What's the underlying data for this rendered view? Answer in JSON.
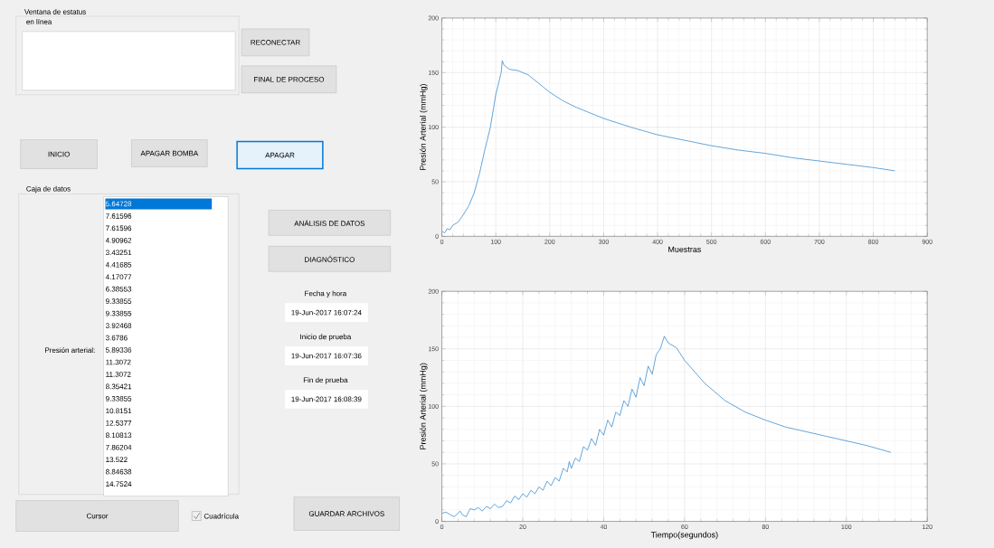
{
  "chart_data": [
    {
      "type": "other",
      "annotations": [
        "Ventana de estatus",
        "en línea",
        "RECONECTAR",
        "FINAL DE PROCESO",
        "INICIO",
        "APAGAR BOMBA",
        "APAGAR",
        "Caja de datos",
        "Presión arterial:",
        "5.64728",
        "7.61596",
        "7.61596",
        "4.90962",
        "3.43251",
        "4.41685",
        "4.17077",
        "6.38553",
        "9.33855",
        "9.33855",
        "3.92468",
        "3.6786",
        "5.89336",
        "11.3072",
        "11.3072",
        "8.35421",
        "9.33855",
        "10.8151",
        "12.5377",
        "8.10813",
        "7.86204",
        "13.522",
        "8.84638",
        "14.7524",
        "ANÁLISIS DE DATOS",
        "DIAGNÓSTICO",
        "Fecha y hora",
        "19-Jun-2017 16:07:24",
        "Inicio de prueba",
        "19-Jun-2017 16:07:36",
        "Fin de prueba",
        "19-Jun-2017 16:08:39",
        "Cursor",
        "Cuadrícula",
        "GUARDAR ARCHIVOS"
      ]
    },
    {
      "type": "line",
      "xlabel": "Muestras",
      "ylabel": "Presión Arterial (mmHg)",
      "xlim": [
        0,
        900
      ],
      "ylim": [
        0,
        200
      ],
      "xticks": [
        0,
        100,
        200,
        300,
        400,
        500,
        600,
        700,
        800,
        900
      ],
      "yticks": [
        0,
        50,
        100,
        150,
        200
      ],
      "grid": true,
      "series": [
        {
          "color": "#3d8fd1",
          "x": [
            0,
            5,
            10,
            15,
            20,
            30,
            40,
            50,
            60,
            70,
            80,
            90,
            100,
            110,
            112,
            115,
            125,
            140,
            160,
            180,
            200,
            225,
            250,
            300,
            350,
            400,
            450,
            500,
            550,
            600,
            650,
            700,
            750,
            800,
            840
          ],
          "values": [
            5,
            3,
            7,
            6,
            10,
            13,
            20,
            28,
            40,
            58,
            80,
            100,
            130,
            150,
            161,
            157,
            153,
            152,
            148,
            140,
            132,
            124,
            118,
            108,
            100,
            93,
            88,
            83,
            79,
            76,
            72,
            69,
            66,
            63,
            60
          ]
        }
      ]
    },
    {
      "type": "line",
      "xlabel": "Tiempo(segundos)",
      "ylabel": "Presión Arterial (mmHg)",
      "xlim": [
        0,
        120
      ],
      "ylim": [
        0,
        200
      ],
      "xticks": [
        0,
        20,
        40,
        60,
        80,
        100,
        120
      ],
      "yticks": [
        0,
        50,
        100,
        150,
        200
      ],
      "grid": true,
      "series": [
        {
          "color": "#3d8fd1",
          "x": [
            0,
            1,
            2,
            3,
            4,
            4.5,
            5,
            6,
            7,
            8,
            9,
            10,
            11,
            12,
            13,
            14,
            15,
            16,
            17,
            18,
            19,
            20,
            21,
            22,
            23,
            24,
            25,
            26,
            27,
            28,
            29,
            30,
            31,
            31.5,
            32,
            33,
            34,
            35,
            36,
            37,
            38,
            39,
            40,
            41,
            42,
            43,
            44,
            45,
            46,
            47,
            48,
            49,
            50,
            51,
            52,
            53,
            54,
            55,
            56,
            58,
            60,
            65,
            70,
            75,
            80,
            85,
            90,
            95,
            100,
            105,
            111
          ],
          "values": [
            7,
            8,
            6,
            4,
            7,
            9,
            6,
            4,
            11,
            10,
            12,
            9,
            13,
            11,
            15,
            12,
            13,
            18,
            16,
            22,
            19,
            24,
            21,
            27,
            24,
            30,
            27,
            35,
            31,
            38,
            35,
            46,
            43,
            52,
            46,
            55,
            52,
            65,
            62,
            72,
            66,
            80,
            75,
            88,
            82,
            95,
            92,
            105,
            100,
            115,
            108,
            125,
            118,
            135,
            128,
            145,
            150,
            161,
            155,
            151,
            140,
            120,
            105,
            95,
            88,
            82,
            78,
            74,
            70,
            66,
            60
          ]
        }
      ]
    }
  ]
}
